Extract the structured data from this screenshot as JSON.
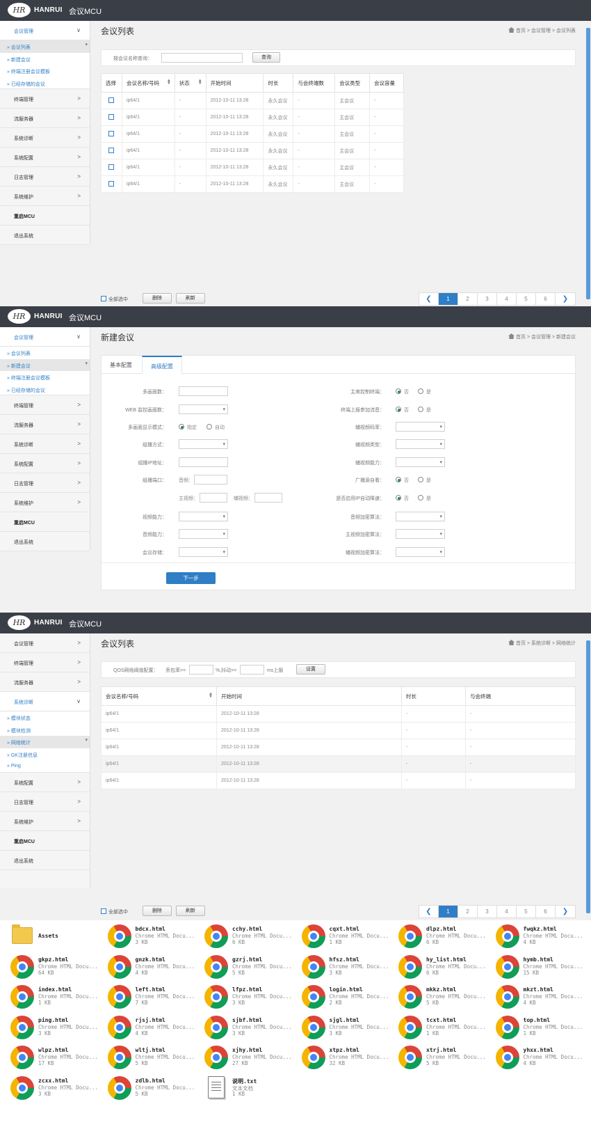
{
  "app": {
    "logo_text": "HR",
    "brand": "HANRUI",
    "product": "会议MCU"
  },
  "menus": {
    "conf": "会议管理",
    "term": "终端管理",
    "stream": "流服务器",
    "diag": "系统诊断",
    "config": "系统配置",
    "log": "日志管理",
    "maint": "系统维护",
    "restart": "重启MCU",
    "logout": "退出系统",
    "arrow_right": ">",
    "arrow_down": "∨"
  },
  "submenus": {
    "conf_list": "会议列表",
    "new_conf": "新建会议",
    "term_template": "终端注册会议模板",
    "stored_conf": "已经存储的会议",
    "module_state": "模块状态",
    "module_detect": "模块检测",
    "net_stats": "网络统计",
    "gk_info": "GK注册信息",
    "ping": "Ping"
  },
  "screen1": {
    "title": "会议列表",
    "breadcrumb": "首页 > 会议管理 > 会议列表",
    "search_label": "按会议名称查询：",
    "search_value": "",
    "search_button": "查询",
    "headers": [
      "选择",
      "会议名称/号码",
      "状态",
      "开始时间",
      "时长",
      "与会终端数",
      "会议类型",
      "会议容量"
    ],
    "rows": [
      [
        "",
        "ip64/1",
        "-",
        "2012-10-11 13:28",
        "永久会议",
        "-",
        "主会议",
        "-"
      ],
      [
        "",
        "ip64/1",
        "-",
        "2012-10-11 13:28",
        "永久会议",
        "-",
        "主会议",
        "-"
      ],
      [
        "",
        "ip64/1",
        "-",
        "2012-10-11 13:28",
        "永久会议",
        "-",
        "主会议",
        "-"
      ],
      [
        "",
        "ip64/1",
        "-",
        "2012-10-11 13:28",
        "永久会议",
        "-",
        "主会议",
        "-"
      ],
      [
        "",
        "ip64/1",
        "-",
        "2012-10-11 13:28",
        "永久会议",
        "-",
        "主会议",
        "-"
      ],
      [
        "",
        "ip64/1",
        "-",
        "2012-10-11 13:28",
        "永久会议",
        "-",
        "主会议",
        "-"
      ]
    ],
    "select_all": "全部选中",
    "delete": "删除",
    "refresh": "刷新"
  },
  "pager": {
    "prev": "❮",
    "next": "❯",
    "pages": [
      "1",
      "2",
      "3",
      "4",
      "5",
      "6"
    ],
    "current": "1"
  },
  "screen2": {
    "title": "新建会议",
    "breadcrumb": "首页 > 会议管理 > 新建会议",
    "tabs": [
      "基本配置",
      "高级配置"
    ],
    "active_tab": "高级配置",
    "left_fields": {
      "multi_pic": "多画面数：",
      "web_pic": "WEB 监控画面数：",
      "multi_mode": "多画面显示模式：",
      "opt_fixed": "指定",
      "opt_auto": "自动",
      "multicast": "组播方式：",
      "multicast_ip": "组播IP地址：",
      "multicast_port": "组播端口：",
      "audio": "音频：",
      "main_video": "主视频：",
      "aux_video": "辅视频：",
      "video_cap": "视频能力：",
      "audio_cap": "音频能力：",
      "conf_store": "会议存储："
    },
    "right_fields": {
      "cam_control": "主席控制终端：",
      "term_report": "终端上报参加流音：",
      "aux_codec": "辅视频码率：",
      "aux_type": "辅视频类型：",
      "aux_cap": "辅视频能力：",
      "broadcast": "广播源自看：",
      "auto_rate": "是否启用IP自动降速：",
      "audio_enc": "音频加密算法：",
      "main_enc": "主视频加密算法：",
      "aux_enc": "辅视频加密算法：",
      "opt_no": "否",
      "opt_yes": "是"
    },
    "next": "下一步"
  },
  "screen3": {
    "title": "会议列表",
    "breadcrumb": "首页 > 系统诊断 > 网络统计",
    "qos_label": "QOS网络阈值配置：",
    "loss_label": "丢包率>=",
    "loss_unit": "%,抖动>=",
    "jitter_unit": "ms上报",
    "set_button": "设置",
    "headers": [
      "会议名称/号码",
      "开始时间",
      "时长",
      "与会终端"
    ],
    "rows": [
      [
        "ip64/1",
        "2012-10-11 13:28",
        "-",
        "-"
      ],
      [
        "ip64/1",
        "2012-10-11 13:28",
        "-",
        "-"
      ],
      [
        "ip64/1",
        "2012-10-11 13:28",
        "-",
        "-"
      ],
      [
        "ip64/1",
        "2012-10-11 13:28",
        "-",
        "-"
      ],
      [
        "ip64/1",
        "2012-10-11 13:28",
        "-",
        "-"
      ]
    ]
  },
  "files": [
    {
      "name": "Assets",
      "type": "",
      "size": "",
      "icon": "folder-icon"
    },
    {
      "name": "bdcx.html",
      "type": "Chrome HTML Docu...",
      "size": "3 KB",
      "icon": "chrome-icon"
    },
    {
      "name": "cchy.html",
      "type": "Chrome HTML Docu...",
      "size": "6 KB",
      "icon": "chrome-icon"
    },
    {
      "name": "cqxt.html",
      "type": "Chrome HTML Docu...",
      "size": "1 KB",
      "icon": "chrome-icon"
    },
    {
      "name": "dlpz.html",
      "type": "Chrome HTML Docu...",
      "size": "6 KB",
      "icon": "chrome-icon"
    },
    {
      "name": "fwqkz.html",
      "type": "Chrome HTML Docu...",
      "size": "4 KB",
      "icon": "chrome-icon"
    },
    {
      "name": "gkpz.html",
      "type": "Chrome HTML Docu...",
      "size": "64 KB",
      "icon": "chrome-icon"
    },
    {
      "name": "gnzk.html",
      "type": "Chrome HTML Docu...",
      "size": "4 KB",
      "icon": "chrome-icon"
    },
    {
      "name": "gzrj.html",
      "type": "Chrome HTML Docu...",
      "size": "5 KB",
      "icon": "chrome-icon"
    },
    {
      "name": "hfsz.html",
      "type": "Chrome HTML Docu...",
      "size": "3 KB",
      "icon": "chrome-icon"
    },
    {
      "name": "hy_list.html",
      "type": "Chrome HTML Docu...",
      "size": "6 KB",
      "icon": "chrome-icon"
    },
    {
      "name": "hymb.html",
      "type": "Chrome HTML Docu...",
      "size": "15 KB",
      "icon": "chrome-icon"
    },
    {
      "name": "index.html",
      "type": "Chrome HTML Docu...",
      "size": "1 KB",
      "icon": "chrome-icon"
    },
    {
      "name": "left.html",
      "type": "Chrome HTML Docu...",
      "size": "7 KB",
      "icon": "chrome-icon"
    },
    {
      "name": "lfpz.html",
      "type": "Chrome HTML Docu...",
      "size": "3 KB",
      "icon": "chrome-icon"
    },
    {
      "name": "login.html",
      "type": "Chrome HTML Docu...",
      "size": "2 KB",
      "icon": "chrome-icon"
    },
    {
      "name": "mkkz.html",
      "type": "Chrome HTML Docu...",
      "size": "5 KB",
      "icon": "chrome-icon"
    },
    {
      "name": "mkzt.html",
      "type": "Chrome HTML Docu...",
      "size": "4 KB",
      "icon": "chrome-icon"
    },
    {
      "name": "ping.html",
      "type": "Chrome HTML Docu...",
      "size": "3 KB",
      "icon": "chrome-icon"
    },
    {
      "name": "rjsj.html",
      "type": "Chrome HTML Docu...",
      "size": "4 KB",
      "icon": "chrome-icon"
    },
    {
      "name": "sjbf.html",
      "type": "Chrome HTML Docu...",
      "size": "3 KB",
      "icon": "chrome-icon"
    },
    {
      "name": "sjgl.html",
      "type": "Chrome HTML Docu...",
      "size": "3 KB",
      "icon": "chrome-icon"
    },
    {
      "name": "tcxt.html",
      "type": "Chrome HTML Docu...",
      "size": "1 KB",
      "icon": "chrome-icon"
    },
    {
      "name": "top.html",
      "type": "Chrome HTML Docu...",
      "size": "1 KB",
      "icon": "chrome-icon"
    },
    {
      "name": "wlpz.html",
      "type": "Chrome HTML Docu...",
      "size": "17 KB",
      "icon": "chrome-icon"
    },
    {
      "name": "wltj.html",
      "type": "Chrome HTML Docu...",
      "size": "5 KB",
      "icon": "chrome-icon"
    },
    {
      "name": "xjhy.html",
      "type": "Chrome HTML Docu...",
      "size": "27 KB",
      "icon": "chrome-icon"
    },
    {
      "name": "xtpz.html",
      "type": "Chrome HTML Docu...",
      "size": "32 KB",
      "icon": "chrome-icon"
    },
    {
      "name": "xtrj.html",
      "type": "Chrome HTML Docu...",
      "size": "5 KB",
      "icon": "chrome-icon"
    },
    {
      "name": "yhxx.html",
      "type": "Chrome HTML Docu...",
      "size": "4 KB",
      "icon": "chrome-icon"
    },
    {
      "name": "zcxx.html",
      "type": "Chrome HTML Docu...",
      "size": "3 KB",
      "icon": "chrome-icon"
    },
    {
      "name": "zdlb.html",
      "type": "Chrome HTML Docu...",
      "size": "5 KB",
      "icon": "chrome-icon"
    },
    {
      "name": "说明.txt",
      "type": "文本文档",
      "size": "1 KB",
      "icon": "text-file-icon"
    }
  ],
  "colors": {
    "topbar": "#3a3e47",
    "accent": "#2f7ec6",
    "radio_on": "#2e8b57"
  }
}
